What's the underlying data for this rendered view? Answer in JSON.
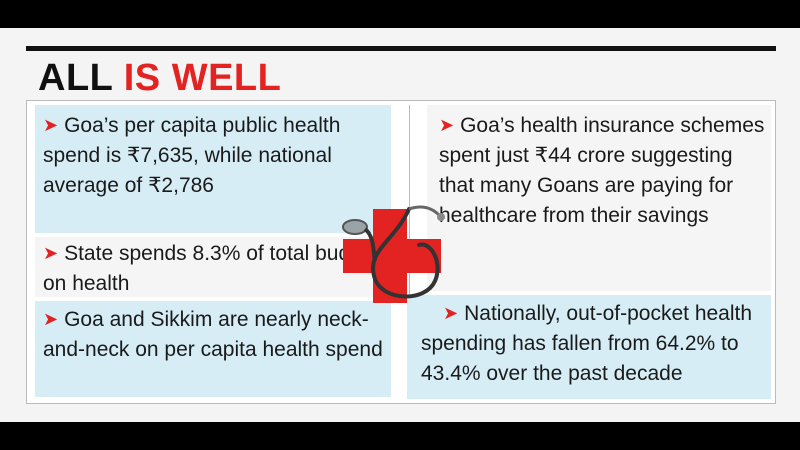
{
  "headline": {
    "part1": "ALL ",
    "part2": "IS WELL"
  },
  "left": {
    "item1": "Goa’s per capita public health spend is ₹7,635, while national average of  ₹2,786",
    "item2": "State spends 8.3% of total budget on health",
    "item3": "Goa and Sikkim are nearly neck-and-neck on per capita health spend"
  },
  "right": {
    "item1": "Goa’s health insurance schemes spent just ₹44 crore suggesting that many Goans are paying for healthcare from their savings",
    "item2": "Nationally, out-of-pocket health spending has fallen from 64.2% to 43.4% over the past decade"
  },
  "icons": {
    "bullet": "arrow-right-icon",
    "graphic": "red-cross-stethoscope-icon"
  },
  "colors": {
    "accent": "#e32222",
    "panel_blue": "#d6edf6"
  }
}
